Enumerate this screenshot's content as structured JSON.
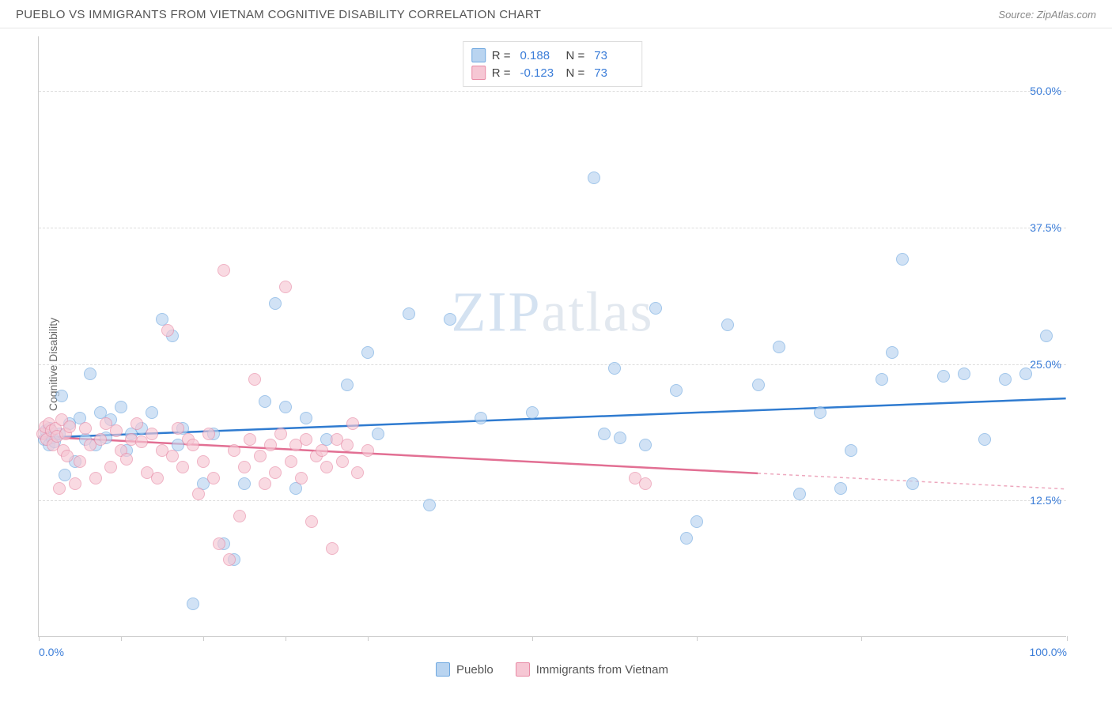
{
  "title": "PUEBLO VS IMMIGRANTS FROM VIETNAM COGNITIVE DISABILITY CORRELATION CHART",
  "source_label": "Source:",
  "source_name": "ZipAtlas.com",
  "watermark": {
    "part1": "ZIP",
    "part2": "atlas"
  },
  "ylabel": "Cognitive Disability",
  "chart": {
    "type": "scatter",
    "background_color": "#ffffff",
    "grid_color": "#dddddd",
    "axis_color": "#cccccc",
    "label_color": "#3b7dd8",
    "xlim": [
      0,
      100
    ],
    "ylim": [
      0,
      55
    ],
    "yticks": [
      {
        "v": 12.5,
        "label": "12.5%"
      },
      {
        "v": 25.0,
        "label": "25.0%"
      },
      {
        "v": 37.5,
        "label": "37.5%"
      },
      {
        "v": 50.0,
        "label": "50.0%"
      }
    ],
    "xticks_minor": [
      0,
      8,
      16,
      24,
      32,
      48,
      64,
      80,
      100
    ],
    "xlabels": [
      {
        "v": 0,
        "label": "0.0%"
      },
      {
        "v": 100,
        "label": "100.0%"
      }
    ],
    "marker_radius": 8,
    "marker_opacity": 0.65,
    "series": [
      {
        "name": "Pueblo",
        "fill_color": "#b9d4f0",
        "stroke_color": "#6fa8e0",
        "line_color": "#2f7bd0",
        "line_width": 2.5,
        "r_value": "0.188",
        "n_value": "73",
        "trend": {
          "x1": 0,
          "y1": 18.2,
          "x2": 100,
          "y2": 21.8,
          "dash_from_x": 100
        },
        "points": [
          [
            0.5,
            18.0
          ],
          [
            0.7,
            18.8
          ],
          [
            1.0,
            17.5
          ],
          [
            1.1,
            19.0
          ],
          [
            1.3,
            18.2
          ],
          [
            1.5,
            17.8
          ],
          [
            2.0,
            18.5
          ],
          [
            2.2,
            22.0
          ],
          [
            2.5,
            14.8
          ],
          [
            3.0,
            19.5
          ],
          [
            3.5,
            16.0
          ],
          [
            4.0,
            20.0
          ],
          [
            4.5,
            18.0
          ],
          [
            5.0,
            24.0
          ],
          [
            5.5,
            17.5
          ],
          [
            6.0,
            20.5
          ],
          [
            6.5,
            18.2
          ],
          [
            7.0,
            19.8
          ],
          [
            8.0,
            21.0
          ],
          [
            8.5,
            17.0
          ],
          [
            9.0,
            18.5
          ],
          [
            10.0,
            19.0
          ],
          [
            11.0,
            20.5
          ],
          [
            12.0,
            29.0
          ],
          [
            13.0,
            27.5
          ],
          [
            13.5,
            17.5
          ],
          [
            14.0,
            19.0
          ],
          [
            15.0,
            3.0
          ],
          [
            16.0,
            14.0
          ],
          [
            17.0,
            18.5
          ],
          [
            18.0,
            8.5
          ],
          [
            19.0,
            7.0
          ],
          [
            20.0,
            14.0
          ],
          [
            22.0,
            21.5
          ],
          [
            23.0,
            30.5
          ],
          [
            24.0,
            21.0
          ],
          [
            25.0,
            13.5
          ],
          [
            26.0,
            20.0
          ],
          [
            28.0,
            18.0
          ],
          [
            30.0,
            23.0
          ],
          [
            32.0,
            26.0
          ],
          [
            33.0,
            18.5
          ],
          [
            36.0,
            29.5
          ],
          [
            38.0,
            12.0
          ],
          [
            40.0,
            29.0
          ],
          [
            43.0,
            20.0
          ],
          [
            48.0,
            20.5
          ],
          [
            54.0,
            42.0
          ],
          [
            55.0,
            18.5
          ],
          [
            56.0,
            24.5
          ],
          [
            56.5,
            18.2
          ],
          [
            59.0,
            17.5
          ],
          [
            60.0,
            30.0
          ],
          [
            62.0,
            22.5
          ],
          [
            63.0,
            9.0
          ],
          [
            64.0,
            10.5
          ],
          [
            67.0,
            28.5
          ],
          [
            70.0,
            23.0
          ],
          [
            72.0,
            26.5
          ],
          [
            74.0,
            13.0
          ],
          [
            76.0,
            20.5
          ],
          [
            78.0,
            13.5
          ],
          [
            79.0,
            17.0
          ],
          [
            82.0,
            23.5
          ],
          [
            83.0,
            26.0
          ],
          [
            84.0,
            34.5
          ],
          [
            85.0,
            14.0
          ],
          [
            88.0,
            23.8
          ],
          [
            90.0,
            24.0
          ],
          [
            92.0,
            18.0
          ],
          [
            94.0,
            23.5
          ],
          [
            96.0,
            24.0
          ],
          [
            98.0,
            27.5
          ]
        ]
      },
      {
        "name": "Immigrants from Vietnam",
        "fill_color": "#f6c7d4",
        "stroke_color": "#e88aa5",
        "line_color": "#e26f93",
        "line_width": 2.5,
        "r_value": "-0.123",
        "n_value": "73",
        "trend": {
          "x1": 0,
          "y1": 18.3,
          "x2": 100,
          "y2": 13.5,
          "dash_from_x": 70
        },
        "points": [
          [
            0.4,
            18.5
          ],
          [
            0.6,
            19.2
          ],
          [
            0.8,
            18.0
          ],
          [
            1.0,
            19.5
          ],
          [
            1.2,
            18.8
          ],
          [
            1.4,
            17.5
          ],
          [
            1.6,
            19.0
          ],
          [
            1.8,
            18.3
          ],
          [
            2.0,
            13.5
          ],
          [
            2.2,
            19.8
          ],
          [
            2.4,
            17.0
          ],
          [
            2.6,
            18.5
          ],
          [
            2.8,
            16.5
          ],
          [
            3.0,
            19.2
          ],
          [
            3.5,
            14.0
          ],
          [
            4.0,
            16.0
          ],
          [
            4.5,
            19.0
          ],
          [
            5.0,
            17.5
          ],
          [
            5.5,
            14.5
          ],
          [
            6.0,
            18.0
          ],
          [
            6.5,
            19.5
          ],
          [
            7.0,
            15.5
          ],
          [
            7.5,
            18.8
          ],
          [
            8.0,
            17.0
          ],
          [
            8.5,
            16.2
          ],
          [
            9.0,
            18.0
          ],
          [
            9.5,
            19.5
          ],
          [
            10.0,
            17.8
          ],
          [
            10.5,
            15.0
          ],
          [
            11.0,
            18.5
          ],
          [
            11.5,
            14.5
          ],
          [
            12.0,
            17.0
          ],
          [
            12.5,
            28.0
          ],
          [
            13.0,
            16.5
          ],
          [
            13.5,
            19.0
          ],
          [
            14.0,
            15.5
          ],
          [
            14.5,
            18.0
          ],
          [
            15.0,
            17.5
          ],
          [
            15.5,
            13.0
          ],
          [
            16.0,
            16.0
          ],
          [
            16.5,
            18.5
          ],
          [
            17.0,
            14.5
          ],
          [
            17.5,
            8.5
          ],
          [
            18.0,
            33.5
          ],
          [
            18.5,
            7.0
          ],
          [
            19.0,
            17.0
          ],
          [
            19.5,
            11.0
          ],
          [
            20.0,
            15.5
          ],
          [
            20.5,
            18.0
          ],
          [
            21.0,
            23.5
          ],
          [
            21.5,
            16.5
          ],
          [
            22.0,
            14.0
          ],
          [
            22.5,
            17.5
          ],
          [
            23.0,
            15.0
          ],
          [
            23.5,
            18.5
          ],
          [
            24.0,
            32.0
          ],
          [
            24.5,
            16.0
          ],
          [
            25.0,
            17.5
          ],
          [
            25.5,
            14.5
          ],
          [
            26.0,
            18.0
          ],
          [
            26.5,
            10.5
          ],
          [
            27.0,
            16.5
          ],
          [
            27.5,
            17.0
          ],
          [
            28.0,
            15.5
          ],
          [
            28.5,
            8.0
          ],
          [
            29.0,
            18.0
          ],
          [
            29.5,
            16.0
          ],
          [
            30.0,
            17.5
          ],
          [
            30.5,
            19.5
          ],
          [
            31.0,
            15.0
          ],
          [
            32.0,
            17.0
          ],
          [
            58.0,
            14.5
          ],
          [
            59.0,
            14.0
          ]
        ]
      }
    ],
    "legend_top": {
      "r_label": "R =",
      "n_label": "N ="
    },
    "legend_bottom": [
      {
        "swatch_fill": "#b9d4f0",
        "swatch_stroke": "#6fa8e0",
        "label": "Pueblo"
      },
      {
        "swatch_fill": "#f6c7d4",
        "swatch_stroke": "#e88aa5",
        "label": "Immigrants from Vietnam"
      }
    ]
  }
}
